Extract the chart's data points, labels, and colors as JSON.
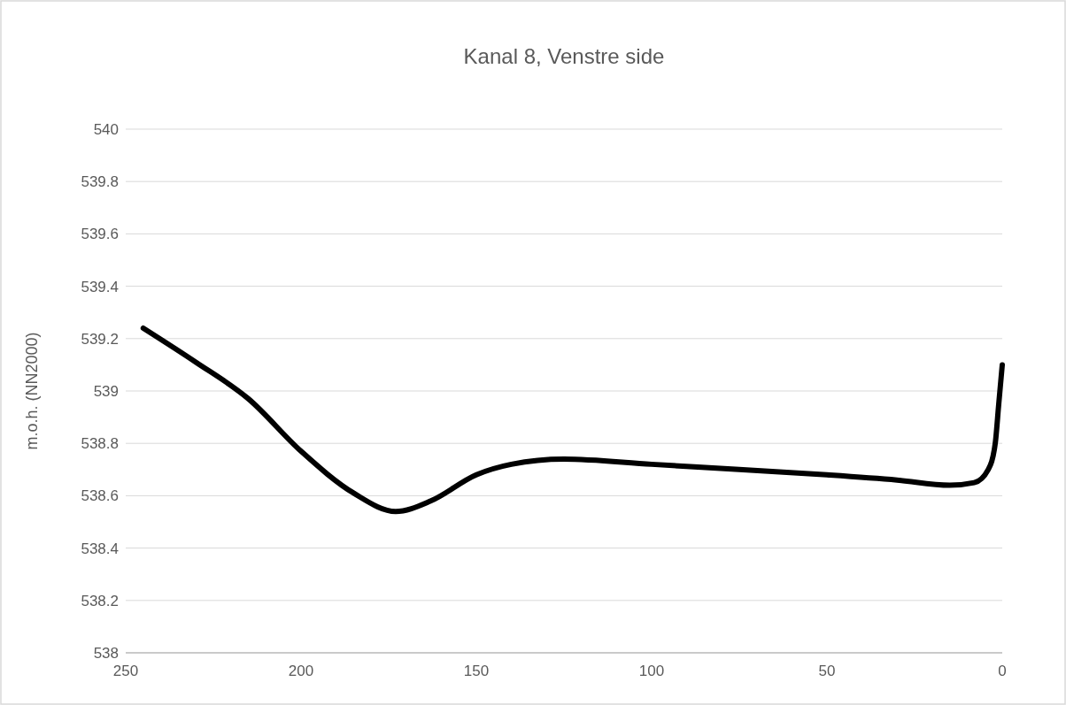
{
  "chart_data": {
    "type": "line",
    "title": "Kanal 8, Venstre side",
    "ylabel": "m.o.h. (NN2000)",
    "x": [
      245,
      230,
      215,
      200,
      185,
      173,
      163,
      150,
      140,
      125,
      100,
      75,
      50,
      30,
      15,
      8,
      4,
      2,
      1,
      0
    ],
    "series": [
      {
        "color": "#000000",
        "values": [
          539.24,
          539.11,
          538.97,
          538.77,
          538.61,
          538.54,
          538.58,
          538.68,
          538.72,
          538.74,
          538.72,
          538.7,
          538.68,
          538.66,
          538.64,
          538.65,
          538.7,
          538.8,
          538.95,
          539.1
        ]
      }
    ],
    "xlim": [
      250,
      0
    ],
    "xticks": [
      250,
      200,
      150,
      100,
      50,
      0
    ],
    "ylim": [
      538,
      540
    ],
    "yticks": [
      538,
      538.2,
      538.4,
      538.6,
      538.8,
      539,
      539.2,
      539.4,
      539.6,
      539.8,
      540
    ],
    "grid": "y",
    "marker": "none",
    "line_style": "solid"
  }
}
